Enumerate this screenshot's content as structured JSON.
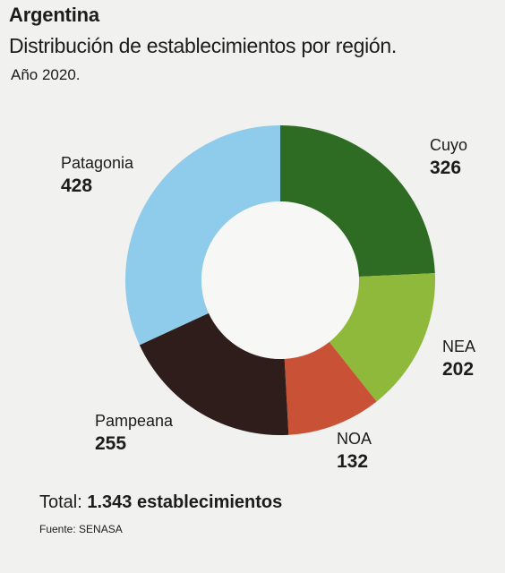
{
  "header": {
    "title": "Argentina",
    "subtitle": "Distribución de establecimientos por región.",
    "note": "Año 2020."
  },
  "chart_data": {
    "type": "pie",
    "donut": true,
    "start_angle_deg": 0,
    "direction": "clockwise",
    "categories": [
      "Cuyo",
      "NEA",
      "NOA",
      "Pampeana",
      "Patagonia"
    ],
    "values": [
      326,
      202,
      132,
      255,
      428
    ],
    "value_labels": [
      "326",
      "202",
      "132",
      "255",
      "428"
    ],
    "colors": [
      "#2e6b23",
      "#8fb93a",
      "#c95136",
      "#2e1d1a",
      "#8fcbea"
    ],
    "legend": "none"
  },
  "footer": {
    "total_prefix": "Total: ",
    "total_value": "1.343 establecimientos",
    "source": "Fuente: SENASA"
  }
}
